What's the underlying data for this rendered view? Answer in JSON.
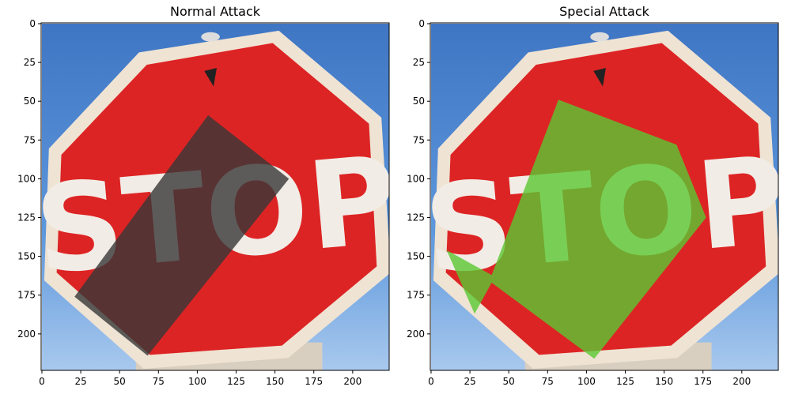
{
  "chart_data": [
    {
      "type": "image",
      "title": "Normal Attack",
      "xlim": [
        -0.5,
        223.5
      ],
      "ylim": [
        223.5,
        -0.5
      ],
      "xticks": [
        0,
        25,
        50,
        75,
        100,
        125,
        150,
        175,
        200
      ],
      "yticks": [
        0,
        25,
        50,
        75,
        100,
        125,
        150,
        175,
        200
      ]
    },
    {
      "type": "image",
      "title": "Special Attack",
      "xlim": [
        -0.5,
        223.5
      ],
      "ylim": [
        223.5,
        -0.5
      ],
      "xticks": [
        0,
        25,
        50,
        75,
        100,
        125,
        150,
        175,
        200
      ],
      "yticks": [
        0,
        25,
        50,
        75,
        100,
        125,
        150,
        175,
        200
      ]
    }
  ]
}
